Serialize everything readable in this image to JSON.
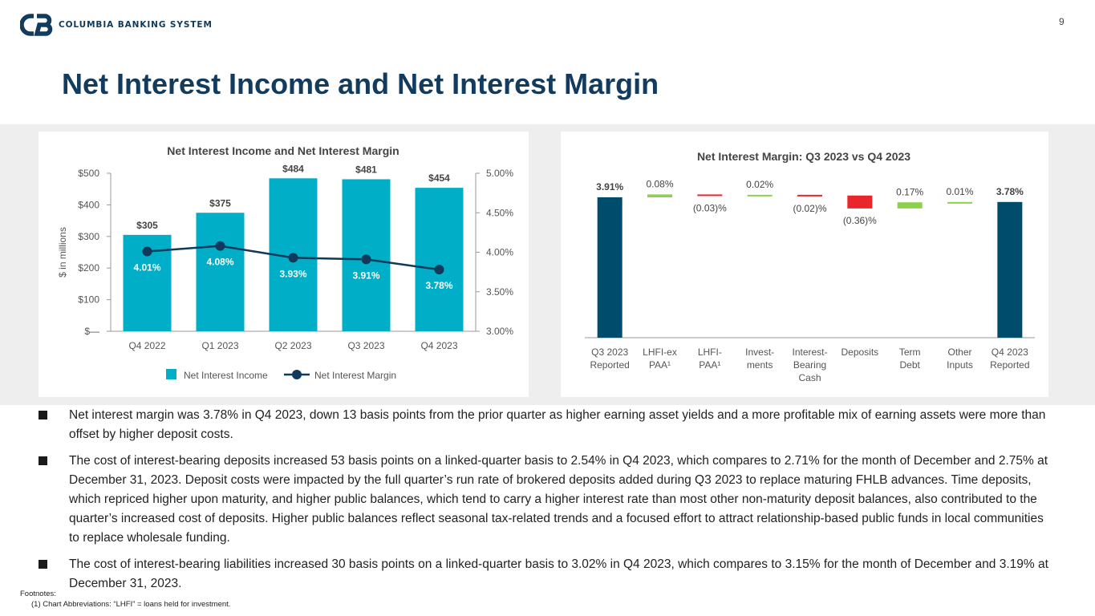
{
  "header": {
    "logo_text": "COLUMBIA BANKING SYSTEM",
    "page_number": "9",
    "title": "Net Interest Income and Net Interest Margin"
  },
  "colors": {
    "navy": "#123b5e",
    "teal_bar": "#00aec7",
    "margin_line": "#0f3a5c",
    "dark_bar": "#004c6c",
    "positive": "#8cd14a",
    "negative": "#e8262b"
  },
  "chart_data": [
    {
      "type": "bar",
      "title": "Net Interest Income and Net Interest Margin",
      "categories": [
        "Q4 2022",
        "Q1 2023",
        "Q2 2023",
        "Q3 2023",
        "Q4 2023"
      ],
      "ylabel": "$ in millions",
      "ylim": [
        0,
        500
      ],
      "y_ticks": [
        "$—",
        "$100",
        "$200",
        "$300",
        "$400",
        "$500"
      ],
      "y2lim": [
        3.0,
        5.0
      ],
      "y2_ticks": [
        "3.00%",
        "3.50%",
        "4.00%",
        "4.50%",
        "5.00%"
      ],
      "series": [
        {
          "name": "Net Interest Income",
          "kind": "bar",
          "values": [
            305,
            375,
            484,
            481,
            454
          ],
          "labels": [
            "$305",
            "$375",
            "$484",
            "$481",
            "$454"
          ]
        },
        {
          "name": "Net Interest Margin",
          "kind": "line",
          "axis": "right",
          "values": [
            4.01,
            4.08,
            3.93,
            3.91,
            3.78
          ],
          "labels": [
            "4.01%",
            "4.08%",
            "3.93%",
            "3.91%",
            "3.78%"
          ]
        }
      ],
      "legend": [
        "Net Interest Income",
        "Net Interest Margin"
      ],
      "legend_position": "bottom"
    },
    {
      "type": "waterfall",
      "title": "Net Interest Margin: Q3 2023 vs Q4 2023",
      "categories": [
        [
          "Q3 2023",
          "Reported"
        ],
        [
          "LHFI-ex",
          "PAA¹"
        ],
        [
          "LHFI-",
          "PAA¹"
        ],
        [
          "Invest-",
          "ments"
        ],
        [
          "Interest-",
          "Bearing",
          "Cash"
        ],
        [
          "Deposits"
        ],
        [
          "Term",
          "Debt"
        ],
        [
          "Other",
          "Inputs"
        ],
        [
          "Q4 2023",
          "Reported"
        ]
      ],
      "values": [
        3.91,
        0.08,
        -0.03,
        0.02,
        -0.02,
        -0.36,
        0.17,
        0.01,
        3.78
      ],
      "kinds": [
        "total",
        "delta",
        "delta",
        "delta",
        "delta",
        "delta",
        "delta",
        "delta",
        "total"
      ],
      "labels": [
        "3.91%",
        "0.08%",
        "(0.03)%",
        "0.02%",
        "(0.02)%",
        "(0.36)%",
        "0.17%",
        "0.01%",
        "3.78%"
      ]
    }
  ],
  "bullets": [
    "Net interest margin was 3.78% in Q4 2023, down 13 basis points from the prior quarter as higher earning asset yields and a more profitable mix of earning assets were more than offset by higher deposit costs.",
    "The cost of interest-bearing deposits increased 53 basis points on a linked-quarter basis to 2.54% in Q4 2023, which compares to 2.71% for the month of December and 2.75% at December 31, 2023. Deposit costs were impacted by the full quarter’s run rate of brokered deposits added during Q3 2023 to replace maturing FHLB advances. Time deposits, which repriced higher upon maturity, and higher public balances, which tend to carry a higher interest rate than most other non-maturity deposit balances, also contributed to the quarter’s increased cost of deposits. Higher public balances reflect seasonal tax-related trends and a focused effort to attract relationship-based public funds in local communities to replace wholesale funding.",
    "The cost of interest-bearing liabilities increased 30 basis points on a linked-quarter basis to 3.02% in Q4 2023, which compares to 3.15% for the month of December and 3.19% at December 31, 2023."
  ],
  "footnotes": {
    "heading": "Footnotes:",
    "items": [
      "(1)  Chart Abbreviations: “LHFI” = loans held for investment."
    ]
  }
}
